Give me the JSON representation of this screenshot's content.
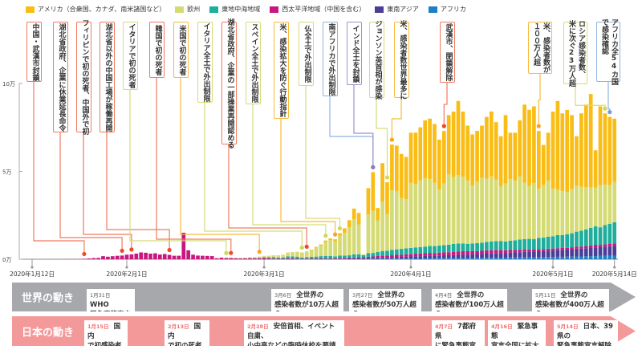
{
  "legend": [
    {
      "key": "americas",
      "label": "アメリカ（合衆国、カナダ、南米諸国など）",
      "color": "#f9bd16"
    },
    {
      "key": "europe",
      "label": "欧州",
      "color": "#d5db74"
    },
    {
      "key": "eastern_med",
      "label": "東地中海地域",
      "color": "#1eae9b"
    },
    {
      "key": "western_pacific",
      "label": "西太平洋地域（中国を含む）",
      "color": "#c8177f"
    },
    {
      "key": "southeast_asia",
      "label": "東南アジア",
      "color": "#4b3e99"
    },
    {
      "key": "africa",
      "label": "アフリカ",
      "color": "#1d80c4"
    }
  ],
  "chart_data": {
    "type": "bar",
    "stacked": true,
    "start_date": "2020-01-12",
    "end_date": "2020-05-14",
    "ylim": [
      0,
      100000
    ],
    "y_ticks": [
      {
        "value": 0,
        "label": "0万"
      },
      {
        "value": 50000,
        "label": "5万"
      },
      {
        "value": 100000,
        "label": "10万"
      }
    ],
    "x_ticks": [
      {
        "date": "2020-01-12",
        "label": "2020年1月12日"
      },
      {
        "date": "2020-02-01",
        "label": "2020年2月1日"
      },
      {
        "date": "2020-03-01",
        "label": "2020年3月1日"
      },
      {
        "date": "2020-04-01",
        "label": "2020年4月1日"
      },
      {
        "date": "2020-05-01",
        "label": "2020年5月1日"
      },
      {
        "date": "2020-05-14",
        "label": "2020年5月14日"
      }
    ],
    "stack_order": [
      "africa",
      "southeast_asia",
      "western_pacific",
      "eastern_med",
      "europe",
      "americas"
    ],
    "series": {
      "western_pacific": [
        0,
        0,
        0,
        0,
        0,
        50,
        20,
        80,
        80,
        150,
        130,
        260,
        450,
        690,
        780,
        1770,
        1460,
        1740,
        1980,
        2100,
        2600,
        2800,
        3200,
        3900,
        3700,
        3200,
        3400,
        2700,
        3000,
        2500,
        2000,
        2000,
        15100,
        5100,
        2600,
        2100,
        2000,
        1900,
        1800,
        600,
        900,
        700,
        700,
        600,
        500,
        500,
        600,
        500,
        600,
        700,
        600,
        400,
        400,
        400,
        500,
        500,
        400,
        300,
        300,
        300,
        300,
        300,
        300,
        300,
        300,
        400,
        400,
        500,
        500,
        600,
        700,
        700,
        800,
        900,
        1000,
        1100,
        1000,
        1200,
        1200,
        1300,
        1300,
        1400,
        1500,
        1500,
        1600,
        1500,
        1600,
        1600,
        1700,
        1800,
        1800,
        1900,
        1900,
        1800,
        1700,
        1800,
        1900,
        1800,
        1700,
        1600,
        1500,
        1500,
        1400,
        1400,
        1300,
        1300,
        1200,
        1200,
        1100,
        1100,
        1100,
        1000,
        1100,
        1000,
        1100,
        1200,
        1100,
        1200,
        1300,
        1400,
        1200,
        1300,
        1300,
        1400
      ],
      "europe": [
        0,
        0,
        0,
        0,
        0,
        0,
        0,
        0,
        0,
        0,
        0,
        0,
        0,
        0,
        0,
        0,
        0,
        0,
        0,
        0,
        0,
        0,
        0,
        0,
        0,
        0,
        0,
        0,
        0,
        0,
        0,
        0,
        0,
        0,
        0,
        0,
        0,
        0,
        0,
        0,
        20,
        80,
        100,
        100,
        200,
        300,
        400,
        600,
        700,
        800,
        900,
        1000,
        1200,
        1500,
        2000,
        2400,
        2600,
        2700,
        2900,
        3600,
        5000,
        6000,
        7800,
        9000,
        8500,
        11200,
        13000,
        16000,
        20000,
        17000,
        300,
        22000,
        24000,
        18000,
        28000,
        21000,
        34000,
        33000,
        29000,
        28000,
        37000,
        36000,
        38000,
        39000,
        38000,
        36000,
        32000,
        35000,
        40000,
        38000,
        39000,
        38000,
        36000,
        33000,
        35000,
        37000,
        36000,
        37000,
        35000,
        31000,
        33000,
        35000,
        34000,
        36000,
        32000,
        30000,
        32000,
        28000,
        30000,
        32000,
        27000,
        26000,
        25000,
        24000,
        25000,
        26000,
        25000,
        24000,
        23000,
        22000,
        24000,
        23000,
        22000,
        23000
      ],
      "eastern_med": [
        0,
        0,
        0,
        0,
        0,
        0,
        0,
        0,
        0,
        0,
        0,
        0,
        0,
        0,
        0,
        0,
        0,
        0,
        0,
        0,
        0,
        0,
        0,
        0,
        0,
        0,
        0,
        0,
        0,
        0,
        0,
        0,
        0,
        0,
        0,
        0,
        0,
        0,
        0,
        0,
        0,
        10,
        30,
        50,
        60,
        100,
        100,
        150,
        200,
        400,
        500,
        800,
        600,
        600,
        1200,
        1100,
        1100,
        700,
        900,
        1000,
        1100,
        1300,
        1400,
        1300,
        1100,
        1400,
        1300,
        1300,
        1800,
        1600,
        1000,
        2000,
        2000,
        2300,
        2700,
        2600,
        3000,
        3100,
        3300,
        3400,
        3500,
        3600,
        3700,
        3800,
        4000,
        4000,
        4000,
        4200,
        4300,
        4500,
        4600,
        4400,
        4200,
        4300,
        4500,
        4600,
        4800,
        5000,
        5100,
        5200,
        5000,
        5300,
        5500,
        5800,
        6000,
        6000,
        5900,
        6300,
        6500,
        6800,
        7000,
        7500,
        7300,
        7800,
        8000,
        8500,
        9000,
        9500,
        10000,
        10500,
        10000,
        11000,
        11500,
        12000
      ],
      "southeast_asia": [
        0,
        0,
        0,
        0,
        0,
        0,
        0,
        0,
        0,
        0,
        0,
        0,
        0,
        0,
        0,
        0,
        0,
        0,
        0,
        0,
        0,
        0,
        0,
        0,
        0,
        0,
        0,
        0,
        0,
        0,
        0,
        0,
        0,
        0,
        0,
        0,
        0,
        0,
        0,
        0,
        0,
        0,
        0,
        0,
        0,
        0,
        0,
        0,
        0,
        0,
        0,
        0,
        0,
        0,
        0,
        0,
        0,
        0,
        0,
        100,
        100,
        150,
        200,
        200,
        200,
        250,
        300,
        350,
        400,
        500,
        500,
        550,
        600,
        700,
        700,
        800,
        900,
        1000,
        1000,
        1100,
        1200,
        1300,
        1300,
        1400,
        1500,
        1500,
        1600,
        1700,
        1700,
        1800,
        1900,
        2000,
        2000,
        2100,
        2200,
        2200,
        2400,
        2500,
        2600,
        2700,
        2700,
        2800,
        2900,
        3000,
        3100,
        3200,
        3200,
        3400,
        3500,
        3600,
        3700,
        3800,
        3900,
        4000,
        4200,
        4400,
        4500,
        4600,
        4800,
        5000,
        5100,
        5300,
        5400,
        5600
      ],
      "africa": [
        0,
        0,
        0,
        0,
        0,
        0,
        0,
        0,
        0,
        0,
        0,
        0,
        0,
        0,
        0,
        0,
        0,
        0,
        0,
        0,
        0,
        0,
        0,
        0,
        0,
        0,
        0,
        0,
        0,
        0,
        0,
        0,
        0,
        0,
        0,
        0,
        0,
        0,
        0,
        0,
        0,
        0,
        0,
        0,
        0,
        0,
        0,
        0,
        0,
        0,
        0,
        0,
        0,
        0,
        0,
        0,
        0,
        0,
        0,
        20,
        30,
        30,
        50,
        50,
        60,
        80,
        100,
        100,
        150,
        150,
        100,
        200,
        200,
        250,
        300,
        300,
        350,
        350,
        400,
        400,
        400,
        450,
        450,
        500,
        500,
        500,
        550,
        600,
        600,
        600,
        650,
        700,
        700,
        700,
        750,
        800,
        800,
        850,
        900,
        900,
        900,
        1000,
        1000,
        1000,
        1100,
        1100,
        1100,
        1200,
        1200,
        1300,
        1300,
        1400,
        1400,
        1500,
        1500,
        1600,
        1600,
        1700,
        1800,
        1800,
        1900,
        1900,
        2000,
        2000
      ],
      "americas": [
        0,
        0,
        0,
        0,
        0,
        0,
        0,
        0,
        0,
        0,
        0,
        0,
        0,
        0,
        0,
        0,
        0,
        0,
        0,
        0,
        0,
        0,
        0,
        0,
        0,
        0,
        0,
        0,
        0,
        0,
        0,
        0,
        0,
        0,
        0,
        0,
        0,
        0,
        0,
        0,
        0,
        0,
        0,
        0,
        0,
        0,
        0,
        0,
        0,
        10,
        30,
        50,
        50,
        70,
        100,
        100,
        100,
        150,
        300,
        400,
        500,
        600,
        900,
        1000,
        1200,
        1500,
        2500,
        4000,
        6000,
        6500,
        200,
        15000,
        22000,
        7000,
        22000,
        18000,
        26000,
        26000,
        25000,
        24000,
        28600,
        29300,
        30100,
        32800,
        34400,
        33500,
        28300,
        29900,
        33700,
        37300,
        42100,
        37000,
        31200,
        29100,
        28900,
        29600,
        35100,
        36900,
        32700,
        28600,
        38900,
        26400,
        27200,
        31800,
        44500,
        43400,
        43600,
        32900,
        22700,
        27200,
        43900,
        50300,
        44300,
        46700,
        42200,
        28300,
        41800,
        47000,
        53100,
        21300,
        44800,
        40500,
        38800,
        36000
      ]
    },
    "annotations": [
      {
        "date": "2020-01-23",
        "region": "western_pacific",
        "text": "中国・武漢市封鎖"
      },
      {
        "date": "2020-01-31",
        "region": "western_pacific",
        "text": "湖北省政府、企業に休業延長命令"
      },
      {
        "date": "2020-02-02",
        "region": "western_pacific",
        "text": "フィリピンで初の死者、中国外で初"
      },
      {
        "date": "2020-02-10",
        "region": "western_pacific",
        "text": "湖北省以外の中国工場が稼働再開"
      },
      {
        "date": "2020-02-22",
        "region": "europe",
        "text": "イタリアで初の死者"
      },
      {
        "date": "2020-02-23",
        "region": "western_pacific",
        "text": "韓国で初の死者"
      },
      {
        "date": "2020-02-29",
        "region": "americas",
        "text": "米国で初の死者"
      },
      {
        "date": "2020-03-09",
        "region": "europe",
        "text": "イタリア全土で外出制限"
      },
      {
        "date": "2020-03-10",
        "region": "western_pacific",
        "text": "湖北省政府、企業の一部操業再開認める"
      },
      {
        "date": "2020-03-14",
        "region": "europe",
        "text": "スペイン全土で外出制限"
      },
      {
        "date": "2020-03-16",
        "region": "americas",
        "text": "米、感染拡大を防ぐ行動指針"
      },
      {
        "date": "2020-03-17",
        "region": "europe",
        "text": "仏全土で外出制限"
      },
      {
        "date": "2020-03-24",
        "region": "africa",
        "text": "南アフリカで外出制限"
      },
      {
        "date": "2020-03-24",
        "region": "southeast_asia",
        "text": "インド全土を封鎖"
      },
      {
        "date": "2020-03-27",
        "region": "europe",
        "text": "ジョンソン英首相が感染"
      },
      {
        "date": "2020-03-28",
        "region": "americas",
        "text": "米、感染者数世界最多に"
      },
      {
        "date": "2020-04-08",
        "region": "western_pacific",
        "text": "武漢市、閉鎖解除"
      },
      {
        "date": "2020-04-28",
        "region": "americas",
        "text": "米、感染者数が\n１００万人超"
      },
      {
        "date": "2020-05-12",
        "region": "europe",
        "text": "ロシア感染者数、\n米に次ぐ23万人超"
      },
      {
        "date": "2020-05-13",
        "region": "africa",
        "text": "アフリカ全54カ国\nで感染確認"
      }
    ],
    "annotation_colors": {
      "western_pacific": "#f07a5e",
      "europe": "#d6dc78",
      "americas": "#f8bb3c",
      "africa": "#8fb5e2",
      "southeast_asia": "#9d92cb"
    },
    "dot_colors": {
      "western_pacific": "#ee4a24",
      "europe": "#cfd85a",
      "americas": "#f6a624",
      "africa": "#6f9fd8",
      "southeast_asia": "#8a7dc0"
    }
  },
  "timeline": {
    "world": {
      "title": "世界の動き",
      "events": [
        {
          "date": "1月31日",
          "text1": "WHO",
          "text2": "緊急事態宣言"
        },
        {
          "date": "3月6日",
          "text1": "全世界の",
          "text2": "感染者数が10万人超え"
        },
        {
          "date": "3月27日",
          "text1": "全世界の",
          "text2": "感染者数が50万人超え"
        },
        {
          "date": "4月4日",
          "text1": "全世界の",
          "text2": "感染者数が100万人超え"
        },
        {
          "date": "5月11日",
          "text1": "全世界の",
          "text2": "感染者数が400万人超え"
        }
      ]
    },
    "japan": {
      "title": "日本の動き",
      "events": [
        {
          "date": "1月15日",
          "text1": "国内",
          "text2": "で初感染者"
        },
        {
          "date": "2月13日",
          "text1": "国内",
          "text2": "で初の死者"
        },
        {
          "date": "2月28日",
          "text1": "安倍首相、イベント自粛、",
          "text2": "小中高などの臨時休校を要請"
        },
        {
          "date": "4月7日",
          "text1": "7都府県",
          "text2": "に緊急事態宣言"
        },
        {
          "date": "4月16日",
          "text1": "緊急事態",
          "text2": "宣言全国に拡大"
        },
        {
          "date": "5月14日",
          "text1": "日本、39県の",
          "text2": "緊急事態宣言解除"
        }
      ]
    }
  }
}
